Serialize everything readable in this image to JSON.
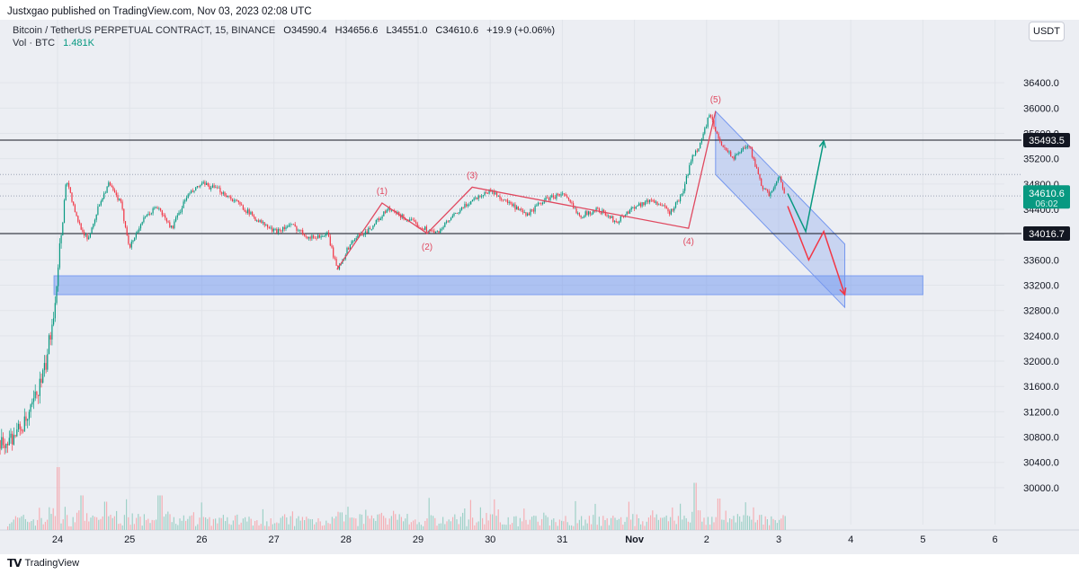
{
  "header": {
    "published": "Justxgao published on TradingView.com, Nov 03, 2023 02:08 UTC"
  },
  "legend": {
    "symbol": "Bitcoin / TetherUS PERPETUAL CONTRACT, 15, BINANCE",
    "open": "O34590.4",
    "high": "H34656.6",
    "low": "L34551.0",
    "close": "C34610.6",
    "change": "+19.9 (+0.06%)",
    "volume_label": "Vol · BTC",
    "volume_value": "1.481K"
  },
  "currency_button": "USDT",
  "footer": {
    "logo_text": "TradingView",
    "logo_icon": "tradingview-logo-icon"
  },
  "colors": {
    "up": "#089981",
    "down": "#f23645",
    "wave": "#e0485f",
    "channel": "#7597ef",
    "zone": "#4f7ff0"
  },
  "chart_data": {
    "type": "candlestick",
    "interval": "15",
    "ylim": [
      29700,
      36800
    ],
    "y_ticks": [
      30000.0,
      30400.0,
      30800.0,
      31200.0,
      31600.0,
      32000.0,
      32400.0,
      32800.0,
      33200.0,
      33600.0,
      34000.0,
      34400.0,
      34800.0,
      35200.0,
      35600.0,
      36000.0,
      36400.0
    ],
    "y_tick_labels": [
      "30000.0",
      "30400.0",
      "30800.0",
      "31200.0",
      "31600.0",
      "32000.0",
      "32400.0",
      "32800.0",
      "33200.0",
      "33600.0",
      "34000.0",
      "34400.0",
      "34800.0",
      "35200.0",
      "35600.0",
      "36000.0",
      "36400.0"
    ],
    "x_ticks": [
      "24",
      "25",
      "26",
      "27",
      "28",
      "29",
      "30",
      "31",
      "Nov",
      "2",
      "3",
      "4",
      "5",
      "6"
    ],
    "x_tick_dates": [
      "2023-10-24",
      "2023-10-25",
      "2023-10-26",
      "2023-10-27",
      "2023-10-28",
      "2023-10-29",
      "2023-10-30",
      "2023-10-31",
      "2023-11-01",
      "2023-11-02",
      "2023-11-03",
      "2023-11-04",
      "2023-11-05",
      "2023-11-06"
    ],
    "price_path": [
      [
        "2023-10-23 00:00",
        30500
      ],
      [
        "2023-10-23 07:00",
        30720
      ],
      [
        "2023-10-23 14:00",
        31050
      ],
      [
        "2023-10-23 20:00",
        31900
      ],
      [
        "2023-10-23 23:00",
        32900
      ],
      [
        "2023-10-24 00:30",
        33700
      ],
      [
        "2023-10-24 03:00",
        34900
      ],
      [
        "2023-10-24 06:00",
        34300
      ],
      [
        "2023-10-24 10:00",
        33900
      ],
      [
        "2023-10-24 14:00",
        34500
      ],
      [
        "2023-10-24 17:00",
        34800
      ],
      [
        "2023-10-24 21:00",
        34500
      ],
      [
        "2023-10-25 00:00",
        33800
      ],
      [
        "2023-10-25 04:00",
        34200
      ],
      [
        "2023-10-25 09:00",
        34450
      ],
      [
        "2023-10-25 14:00",
        34100
      ],
      [
        "2023-10-25 19:00",
        34600
      ],
      [
        "2023-10-26 00:00",
        34800
      ],
      [
        "2023-10-26 06:00",
        34700
      ],
      [
        "2023-10-26 12:00",
        34500
      ],
      [
        "2023-10-26 18:00",
        34250
      ],
      [
        "2023-10-27 00:00",
        34050
      ],
      [
        "2023-10-27 06:00",
        34150
      ],
      [
        "2023-10-27 12:00",
        33950
      ],
      [
        "2023-10-27 18:00",
        34000
      ],
      [
        "2023-10-27 21:00",
        33450
      ],
      [
        "2023-10-28 02:00",
        33900
      ],
      [
        "2023-10-28 08:00",
        34100
      ],
      [
        "2023-10-28 14:00",
        34400
      ],
      [
        "2023-10-28 20:00",
        34250
      ],
      [
        "2023-10-29 01:00",
        34120
      ],
      [
        "2023-10-29 06:00",
        34020
      ],
      [
        "2023-10-29 12:00",
        34300
      ],
      [
        "2023-10-29 18:00",
        34550
      ],
      [
        "2023-10-30 00:00",
        34700
      ],
      [
        "2023-10-30 06:00",
        34500
      ],
      [
        "2023-10-30 12:00",
        34300
      ],
      [
        "2023-10-30 18:00",
        34550
      ],
      [
        "2023-10-31 00:00",
        34650
      ],
      [
        "2023-10-31 06:00",
        34300
      ],
      [
        "2023-10-31 12:00",
        34400
      ],
      [
        "2023-10-31 18:00",
        34200
      ],
      [
        "2023-11-01 00:00",
        34450
      ],
      [
        "2023-11-01 06:00",
        34550
      ],
      [
        "2023-11-01 12:00",
        34350
      ],
      [
        "2023-11-01 16:00",
        34650
      ],
      [
        "2023-11-01 19:00",
        35200
      ],
      [
        "2023-11-01 22:00",
        35450
      ],
      [
        "2023-11-02 01:00",
        35900
      ],
      [
        "2023-11-02 04:00",
        35500
      ],
      [
        "2023-11-02 09:00",
        35200
      ],
      [
        "2023-11-02 14:00",
        35450
      ],
      [
        "2023-11-02 18:00",
        34800
      ],
      [
        "2023-11-02 21:00",
        34600
      ],
      [
        "2023-11-03 00:00",
        34950
      ],
      [
        "2023-11-03 02:00",
        34610
      ]
    ],
    "volume": {
      "label": "Vol · BTC",
      "last": "1.481K",
      "spikes": [
        [
          "2023-10-24 00:00",
          1.0
        ],
        [
          "2023-10-24 08:00",
          0.55
        ],
        [
          "2023-10-24 16:00",
          0.45
        ],
        [
          "2023-10-25 10:00",
          0.55
        ],
        [
          "2023-10-27 22:00",
          0.28
        ],
        [
          "2023-10-30 00:00",
          0.25
        ],
        [
          "2023-11-01 20:00",
          0.75
        ],
        [
          "2023-11-02 04:00",
          0.5
        ]
      ]
    },
    "horizontal_lines": [
      {
        "price": 35493.5,
        "label": "35493.5",
        "style": "black"
      },
      {
        "price": 34016.7,
        "label": "34016.7",
        "style": "black"
      },
      {
        "price": 34950,
        "style": "dotted"
      },
      {
        "price": 34610.6,
        "style": "dotted"
      }
    ],
    "last_price": {
      "label": "34610.6",
      "countdown": "06:02"
    },
    "support_zone": {
      "from": "2023-10-24 00:00",
      "to": "2023-11-05 00:00",
      "low": 33050,
      "high": 33350
    },
    "elliott_wave": [
      {
        "label": "",
        "time": "2023-10-27 21:00",
        "price": 33450
      },
      {
        "label": "(1)",
        "time": "2023-10-28 12:00",
        "price": 34500
      },
      {
        "label": "(2)",
        "time": "2023-10-29 03:00",
        "price": 34020
      },
      {
        "label": "(3)",
        "time": "2023-10-29 18:00",
        "price": 34750
      },
      {
        "label": "(4)",
        "time": "2023-11-01 18:00",
        "price": 34100
      },
      {
        "label": "(5)",
        "time": "2023-11-02 03:00",
        "price": 35950
      }
    ],
    "channel": [
      [
        "2023-11-02 03:00",
        35950
      ],
      [
        "2023-11-03 22:00",
        33850
      ],
      [
        "2023-11-03 22:00",
        32850
      ],
      [
        "2023-11-02 03:00",
        34950
      ]
    ],
    "bullish_projection": [
      [
        "2023-11-03 03:00",
        34650
      ],
      [
        "2023-11-03 09:00",
        34050
      ],
      [
        "2023-11-03 15:00",
        35480
      ]
    ],
    "bearish_projection": [
      [
        "2023-11-03 03:00",
        34450
      ],
      [
        "2023-11-03 10:00",
        33600
      ],
      [
        "2023-11-03 15:00",
        34050
      ],
      [
        "2023-11-03 22:00",
        33050
      ]
    ]
  }
}
